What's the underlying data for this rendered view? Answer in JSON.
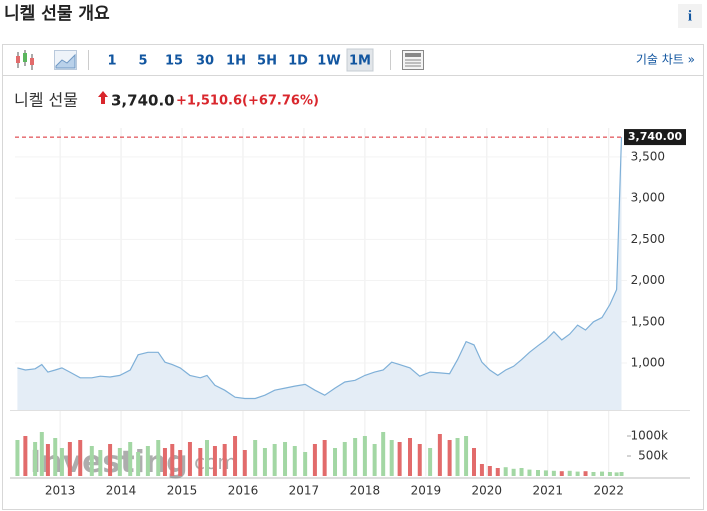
{
  "header": {
    "title": "니켈 선물 개요",
    "info": "i"
  },
  "toolbar": {
    "intervals": [
      "1",
      "5",
      "15",
      "30",
      "1H",
      "5H",
      "1D",
      "1W",
      "1M"
    ],
    "active": 8,
    "tech_chart": "기술 차트 »"
  },
  "quote": {
    "name": "니켈 선물",
    "price": "3,740.0",
    "change": "+1,510.6",
    "change_pct": "(+67.76%)"
  },
  "watermark": [
    "Investing",
    ".com"
  ],
  "chart_data": {
    "type": "area",
    "x": [
      2012.3,
      2012.43,
      2012.59,
      2012.7,
      2012.8,
      2012.92,
      2013.03,
      2013.16,
      2013.33,
      2013.52,
      2013.66,
      2013.82,
      2013.98,
      2014.15,
      2014.28,
      2014.44,
      2014.61,
      2014.72,
      2014.84,
      2014.97,
      2015.13,
      2015.3,
      2015.41,
      2015.54,
      2015.7,
      2015.87,
      2016.03,
      2016.2,
      2016.36,
      2016.52,
      2016.69,
      2016.85,
      2017.02,
      2017.18,
      2017.34,
      2017.51,
      2017.67,
      2017.84,
      2018.0,
      2018.16,
      2018.3,
      2018.44,
      2018.57,
      2018.74,
      2018.9,
      2019.07,
      2019.23,
      2019.39,
      2019.52,
      2019.66,
      2019.79,
      2019.92,
      2020.05,
      2020.18,
      2020.31,
      2020.44,
      2020.57,
      2020.7,
      2020.84,
      2020.97,
      2021.1,
      2021.23,
      2021.36,
      2021.49,
      2021.62,
      2021.75,
      2021.89,
      2022.02,
      2022.13,
      2022.21
    ],
    "series": [
      {
        "name": "니켈 선물",
        "color": "#7fb0d8",
        "fill": "#e4edf6",
        "values": [
          940,
          915,
          930,
          980,
          890,
          915,
          940,
          890,
          820,
          820,
          840,
          830,
          850,
          915,
          1100,
          1130,
          1130,
          1010,
          980,
          940,
          850,
          820,
          850,
          730,
          670,
          585,
          570,
          570,
          610,
          670,
          695,
          720,
          740,
          670,
          610,
          695,
          770,
          790,
          850,
          890,
          915,
          1010,
          980,
          940,
          840,
          890,
          880,
          870,
          1040,
          1260,
          1220,
          1010,
          915,
          850,
          915,
          960,
          1040,
          1130,
          1210,
          1280,
          1380,
          1280,
          1350,
          1460,
          1400,
          1500,
          1550,
          1710,
          1890,
          3740
        ]
      }
    ],
    "last_price": {
      "value": 3740,
      "label": "3,740.00",
      "color": "#d9262c"
    },
    "xlim": [
      2012.26,
      2022.3
    ],
    "xticks": [
      2013,
      2014,
      2015,
      2016,
      2017,
      2018,
      2019,
      2020,
      2021,
      2022
    ],
    "ylim": [
      430,
      3850
    ],
    "yticks": [
      {
        "value": 1000,
        "label": "1,000"
      },
      {
        "value": 1500,
        "label": "1,500"
      },
      {
        "value": 2000,
        "label": "2,000"
      },
      {
        "value": 2500,
        "label": "2,500"
      },
      {
        "value": 3000,
        "label": "3,000"
      },
      {
        "value": 3500,
        "label": "3,500"
      }
    ],
    "grid": true,
    "volume": {
      "colors": {
        "up": "#a3d7a4",
        "down": "#e26b6b"
      },
      "values": [
        900000,
        1000000,
        850000,
        1100000,
        800000,
        950000,
        700000,
        850000,
        900000,
        750000,
        650000,
        800000,
        700000,
        850000,
        600000,
        750000,
        900000,
        700000,
        800000,
        650000,
        850000,
        700000,
        900000,
        750000,
        800000,
        1000000,
        650000,
        900000,
        700000,
        800000,
        850000,
        750000,
        600000,
        800000,
        900000,
        700000,
        850000,
        950000,
        1000000,
        800000,
        1100000,
        900000,
        850000,
        950000,
        800000,
        700000,
        1050000,
        900000,
        950000,
        1000000,
        700000,
        300000,
        250000,
        200000,
        220000,
        180000,
        200000,
        160000,
        150000,
        140000,
        130000,
        120000,
        130000,
        110000,
        120000,
        100000,
        110000,
        100000,
        90000,
        100000
      ],
      "ylim": [
        0,
        1300000
      ],
      "yticks": [
        {
          "value": 500000,
          "label": "500k"
        },
        {
          "value": 1000000,
          "label": "1000k"
        }
      ]
    }
  }
}
